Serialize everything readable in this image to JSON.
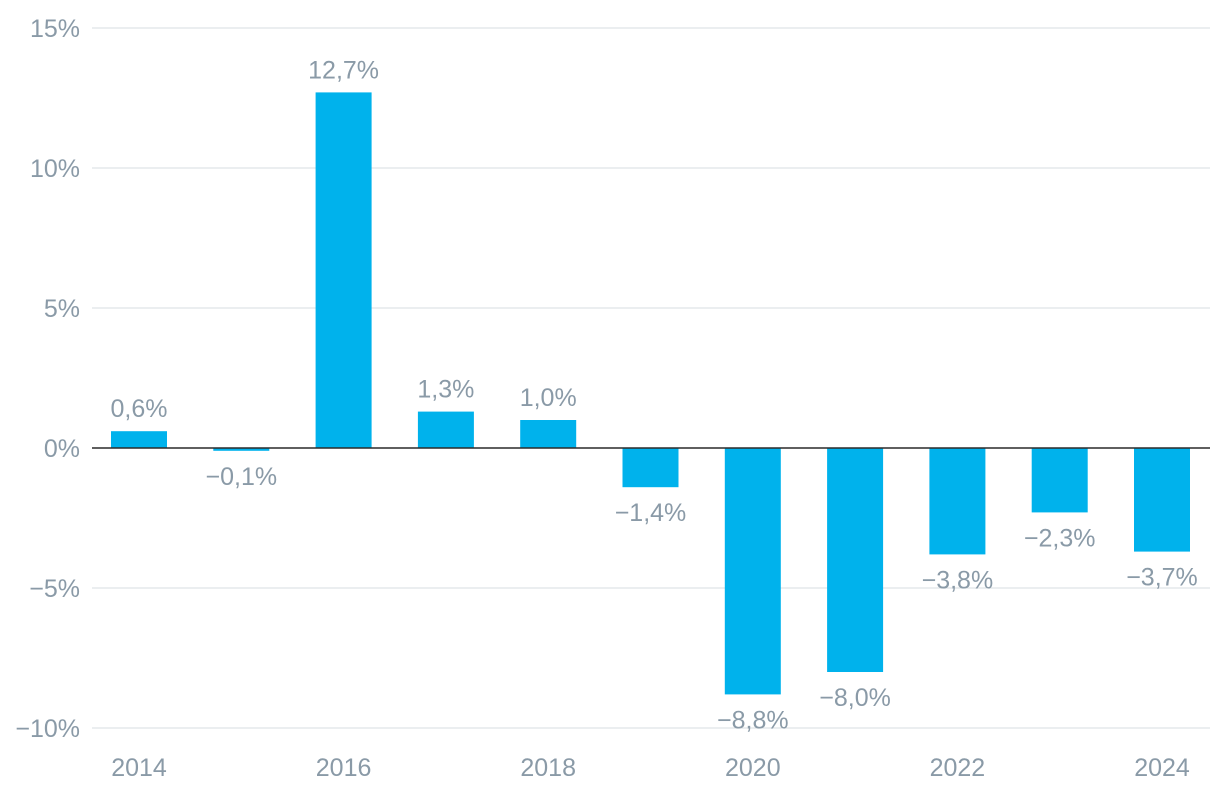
{
  "chart_data": {
    "type": "bar",
    "title": "",
    "xlabel": "",
    "ylabel": "",
    "categories": [
      "2014",
      "2015",
      "2016",
      "2017",
      "2018",
      "2019",
      "2020",
      "2021",
      "2022",
      "2023",
      "2024"
    ],
    "values": [
      0.6,
      -0.1,
      12.7,
      1.3,
      1.0,
      -1.4,
      -8.8,
      -8.0,
      -3.8,
      -2.3,
      -3.7
    ],
    "value_labels": [
      "0,6%",
      "−0,1%",
      "12,7%",
      "1,3%",
      "1,0%",
      "−1,4%",
      "−8,8%",
      "−8,0%",
      "−3,8%",
      "−2,3%",
      "−3,7%"
    ],
    "x_tick_labels": [
      "2014",
      "",
      "2016",
      "",
      "2018",
      "",
      "2020",
      "",
      "2022",
      "",
      "2024"
    ],
    "y_ticks": [
      15,
      10,
      5,
      0,
      -5,
      -10
    ],
    "y_tick_labels": [
      "15%",
      "10%",
      "5%",
      "0%",
      "−5%",
      "−10%"
    ],
    "ylim": [
      -10,
      15
    ],
    "grid": true,
    "legend": "none",
    "colors": {
      "bar": "#00b2ec",
      "grid": "#dfe3e6",
      "zero_line": "#2a2a2a",
      "text": "#8a9aa7"
    }
  }
}
